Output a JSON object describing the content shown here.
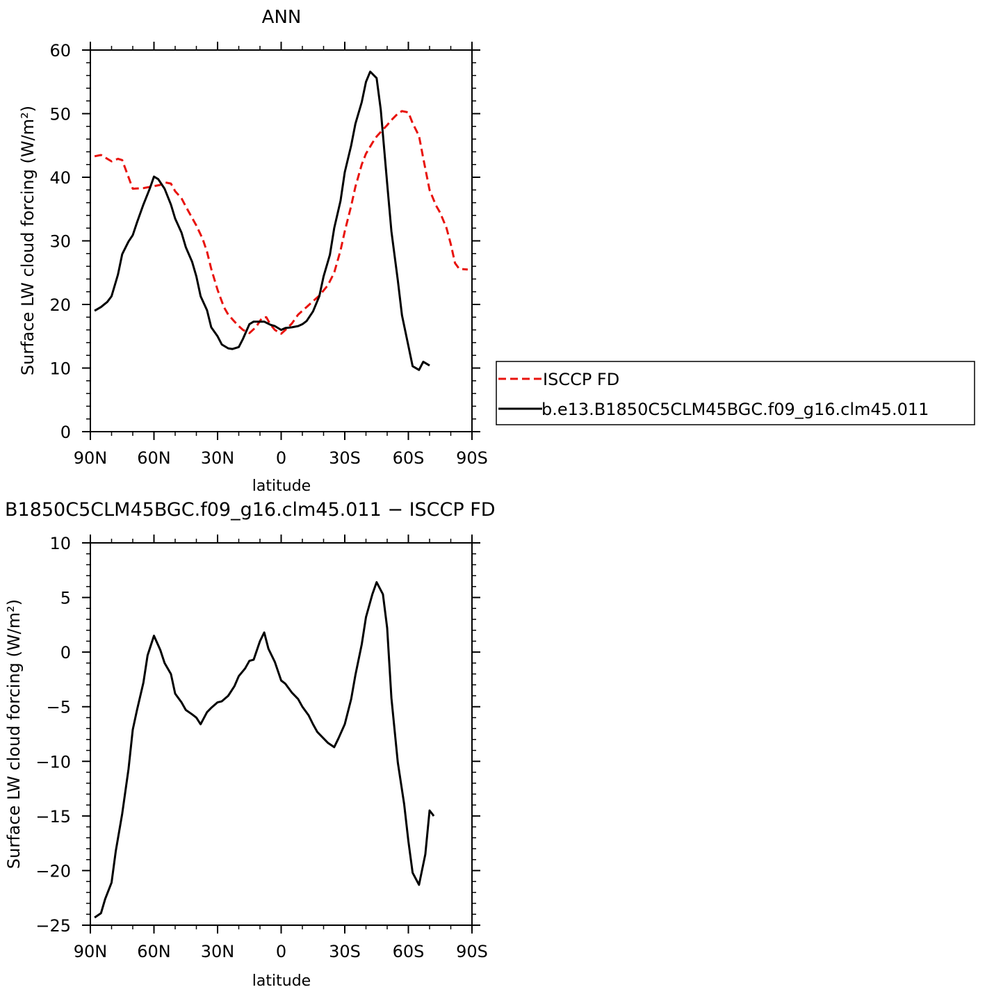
{
  "chart_data": [
    {
      "type": "line",
      "title": "ANN",
      "xlabel": "latitude",
      "ylabel": "Surface LW cloud forcing (W/m²)",
      "xlim": [
        90,
        -90
      ],
      "ylim": [
        0,
        60
      ],
      "x_ticks": [
        90,
        60,
        30,
        0,
        -30,
        -60,
        -90
      ],
      "x_tick_labels": [
        "90N",
        "60N",
        "30N",
        "0",
        "30S",
        "60S",
        "90S"
      ],
      "y_ticks": [
        0,
        10,
        20,
        30,
        40,
        50,
        60
      ],
      "y_tick_labels": [
        "0",
        "10",
        "20",
        "30",
        "40",
        "50",
        "60"
      ],
      "legend_placement": "right",
      "series": [
        {
          "name": "ISCCP FD",
          "color": "#e8120c",
          "dash": "dashed",
          "points": [
            [
              88,
              43.3
            ],
            [
              85,
              43.5
            ],
            [
              80,
              42.5
            ],
            [
              77,
              42.9
            ],
            [
              75,
              42.7
            ],
            [
              70,
              38.2
            ],
            [
              65,
              38.3
            ],
            [
              60,
              38.6
            ],
            [
              57,
              38.8
            ],
            [
              55,
              39.2
            ],
            [
              52,
              39.0
            ],
            [
              50,
              37.8
            ],
            [
              47,
              36.7
            ],
            [
              45,
              35.4
            ],
            [
              40,
              32.4
            ],
            [
              37,
              30.3
            ],
            [
              35,
              28.3
            ],
            [
              33,
              25.6
            ],
            [
              30,
              22.3
            ],
            [
              27,
              19.6
            ],
            [
              25,
              18.4
            ],
            [
              22,
              17.3
            ],
            [
              20,
              16.6
            ],
            [
              18,
              16.0
            ],
            [
              15,
              15.5
            ],
            [
              12,
              16.4
            ],
            [
              9,
              17.9
            ],
            [
              7,
              18.0
            ],
            [
              5,
              16.8
            ],
            [
              3,
              16.0
            ],
            [
              0,
              15.4
            ],
            [
              -2,
              16.0
            ],
            [
              -5,
              17.0
            ],
            [
              -8,
              18.4
            ],
            [
              -12,
              19.6
            ],
            [
              -15,
              20.5
            ],
            [
              -18,
              21.4
            ],
            [
              -22,
              23.0
            ],
            [
              -25,
              25.0
            ],
            [
              -28,
              28.5
            ],
            [
              -30,
              31.5
            ],
            [
              -33,
              35.5
            ],
            [
              -35,
              38.5
            ],
            [
              -38,
              42.0
            ],
            [
              -40,
              43.7
            ],
            [
              -43,
              45.4
            ],
            [
              -45,
              46.4
            ],
            [
              -48,
              47.5
            ],
            [
              -50,
              48.2
            ],
            [
              -52,
              49.0
            ],
            [
              -55,
              50.0
            ],
            [
              -57,
              50.4
            ],
            [
              -60,
              50.2
            ],
            [
              -62,
              48.5
            ],
            [
              -65,
              46.5
            ],
            [
              -67,
              43.0
            ],
            [
              -70,
              38.0
            ],
            [
              -73,
              35.6
            ],
            [
              -75,
              34.4
            ],
            [
              -78,
              32.0
            ],
            [
              -80,
              29.5
            ],
            [
              -82,
              26.5
            ],
            [
              -84,
              25.6
            ],
            [
              -88,
              25.5
            ]
          ]
        },
        {
          "name": "b.e13.B1850C5CLM45BGC.f09_g16.clm45.011",
          "color": "#000000",
          "dash": "solid",
          "points": [
            [
              88,
              19.0
            ],
            [
              85,
              19.6
            ],
            [
              82,
              20.4
            ],
            [
              80,
              21.3
            ],
            [
              77,
              24.7
            ],
            [
              75,
              27.9
            ],
            [
              72,
              29.9
            ],
            [
              70,
              30.9
            ],
            [
              68,
              32.9
            ],
            [
              65,
              35.7
            ],
            [
              62,
              38.2
            ],
            [
              60,
              40.1
            ],
            [
              58,
              39.7
            ],
            [
              55,
              38.2
            ],
            [
              52,
              35.7
            ],
            [
              50,
              33.5
            ],
            [
              47,
              31.3
            ],
            [
              45,
              29.0
            ],
            [
              42,
              26.7
            ],
            [
              40,
              24.4
            ],
            [
              38,
              21.3
            ],
            [
              35,
              19.1
            ],
            [
              33,
              16.4
            ],
            [
              30,
              15.0
            ],
            [
              28,
              13.7
            ],
            [
              25,
              13.1
            ],
            [
              23,
              13.0
            ],
            [
              20,
              13.3
            ],
            [
              18,
              14.6
            ],
            [
              15,
              16.9
            ],
            [
              13,
              17.3
            ],
            [
              10,
              17.3
            ],
            [
              8,
              17.3
            ],
            [
              5,
              16.8
            ],
            [
              3,
              16.6
            ],
            [
              0,
              16.0
            ],
            [
              -2,
              16.3
            ],
            [
              -5,
              16.4
            ],
            [
              -8,
              16.6
            ],
            [
              -10,
              16.9
            ],
            [
              -12,
              17.4
            ],
            [
              -15,
              18.9
            ],
            [
              -18,
              21.3
            ],
            [
              -20,
              24.4
            ],
            [
              -23,
              27.8
            ],
            [
              -25,
              32.0
            ],
            [
              -28,
              36.3
            ],
            [
              -30,
              40.8
            ],
            [
              -33,
              45.0
            ],
            [
              -35,
              48.4
            ],
            [
              -38,
              51.8
            ],
            [
              -40,
              55.0
            ],
            [
              -42,
              56.6
            ],
            [
              -45,
              55.6
            ],
            [
              -47,
              50.6
            ],
            [
              -50,
              39.0
            ],
            [
              -52,
              31.5
            ],
            [
              -55,
              23.8
            ],
            [
              -57,
              18.3
            ],
            [
              -60,
              13.5
            ],
            [
              -62,
              10.3
            ],
            [
              -65,
              9.7
            ],
            [
              -67,
              11.0
            ],
            [
              -70,
              10.4
            ]
          ]
        }
      ]
    },
    {
      "type": "line",
      "title": "B1850C5CLM45BGC.f09_g16.clm45.011 − ISCCP FD",
      "xlabel": "latitude",
      "ylabel": "Surface LW cloud forcing (W/m²)",
      "xlim": [
        90,
        -90
      ],
      "ylim": [
        -25,
        10
      ],
      "x_ticks": [
        90,
        60,
        30,
        0,
        -30,
        -60,
        -90
      ],
      "x_tick_labels": [
        "90N",
        "60N",
        "30N",
        "0",
        "30S",
        "60S",
        "90S"
      ],
      "y_ticks": [
        -25,
        -20,
        -15,
        -10,
        -5,
        0,
        5,
        10
      ],
      "y_tick_labels": [
        "−25",
        "−20",
        "−15",
        "−10",
        "−5",
        "0",
        "5",
        "10"
      ],
      "series": [
        {
          "color": "#000000",
          "dash": "solid",
          "points": [
            [
              88,
              -24.3
            ],
            [
              85,
              -23.9
            ],
            [
              83,
              -22.6
            ],
            [
              80,
              -21.1
            ],
            [
              78,
              -18.2
            ],
            [
              75,
              -14.8
            ],
            [
              72,
              -10.7
            ],
            [
              70,
              -7.1
            ],
            [
              68,
              -5.3
            ],
            [
              65,
              -2.8
            ],
            [
              63,
              -0.3
            ],
            [
              60,
              1.5
            ],
            [
              57,
              0.2
            ],
            [
              55,
              -1.0
            ],
            [
              52,
              -2.0
            ],
            [
              50,
              -3.8
            ],
            [
              47,
              -4.6
            ],
            [
              45,
              -5.3
            ],
            [
              42,
              -5.7
            ],
            [
              40,
              -6.0
            ],
            [
              38,
              -6.6
            ],
            [
              35,
              -5.5
            ],
            [
              33,
              -5.1
            ],
            [
              30,
              -4.6
            ],
            [
              28,
              -4.5
            ],
            [
              25,
              -4.0
            ],
            [
              22,
              -3.1
            ],
            [
              20,
              -2.2
            ],
            [
              17,
              -1.5
            ],
            [
              15,
              -0.8
            ],
            [
              13,
              -0.7
            ],
            [
              10,
              1.0
            ],
            [
              8,
              1.8
            ],
            [
              6,
              0.3
            ],
            [
              3,
              -0.9
            ],
            [
              0,
              -2.6
            ],
            [
              -2,
              -2.9
            ],
            [
              -5,
              -3.7
            ],
            [
              -8,
              -4.3
            ],
            [
              -10,
              -5.0
            ],
            [
              -13,
              -5.8
            ],
            [
              -15,
              -6.6
            ],
            [
              -17,
              -7.3
            ],
            [
              -20,
              -7.9
            ],
            [
              -22,
              -8.3
            ],
            [
              -25,
              -8.7
            ],
            [
              -27,
              -7.9
            ],
            [
              -30,
              -6.6
            ],
            [
              -33,
              -4.3
            ],
            [
              -35,
              -2.1
            ],
            [
              -38,
              0.7
            ],
            [
              -40,
              3.2
            ],
            [
              -43,
              5.3
            ],
            [
              -45,
              6.4
            ],
            [
              -48,
              5.3
            ],
            [
              -50,
              2.2
            ],
            [
              -52,
              -4.2
            ],
            [
              -55,
              -10.1
            ],
            [
              -58,
              -13.9
            ],
            [
              -60,
              -17.3
            ],
            [
              -62,
              -20.2
            ],
            [
              -65,
              -21.3
            ],
            [
              -68,
              -18.5
            ],
            [
              -70,
              -14.5
            ],
            [
              -72,
              -15.0
            ]
          ]
        }
      ]
    }
  ]
}
